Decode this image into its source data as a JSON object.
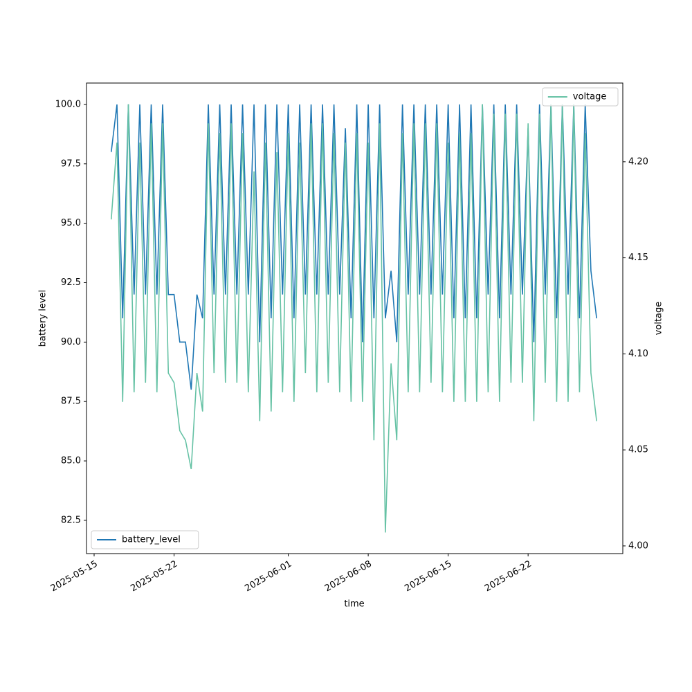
{
  "chart_data": {
    "type": "line",
    "xlabel": "time",
    "ylabel": "battery level",
    "y2label": "voltage",
    "x": [
      "2025-05-16T12:00",
      "2025-05-17T00:00",
      "2025-05-17T12:00",
      "2025-05-18T00:00",
      "2025-05-18T12:00",
      "2025-05-19T00:00",
      "2025-05-19T12:00",
      "2025-05-20T00:00",
      "2025-05-20T12:00",
      "2025-05-21T00:00",
      "2025-05-21T12:00",
      "2025-05-22T00:00",
      "2025-05-22T12:00",
      "2025-05-23T00:00",
      "2025-05-23T12:00",
      "2025-05-24T00:00",
      "2025-05-24T12:00",
      "2025-05-25T00:00",
      "2025-05-25T12:00",
      "2025-05-26T00:00",
      "2025-05-26T12:00",
      "2025-05-27T00:00",
      "2025-05-27T12:00",
      "2025-05-28T00:00",
      "2025-05-28T12:00",
      "2025-05-29T00:00",
      "2025-05-29T12:00",
      "2025-05-30T00:00",
      "2025-05-30T12:00",
      "2025-05-31T00:00",
      "2025-05-31T12:00",
      "2025-06-01T00:00",
      "2025-06-01T12:00",
      "2025-06-02T00:00",
      "2025-06-02T12:00",
      "2025-06-03T00:00",
      "2025-06-03T12:00",
      "2025-06-04T00:00",
      "2025-06-04T12:00",
      "2025-06-05T00:00",
      "2025-06-05T12:00",
      "2025-06-06T00:00",
      "2025-06-06T12:00",
      "2025-06-07T00:00",
      "2025-06-07T12:00",
      "2025-06-08T00:00",
      "2025-06-08T12:00",
      "2025-06-09T00:00",
      "2025-06-09T12:00",
      "2025-06-10T00:00",
      "2025-06-10T12:00",
      "2025-06-11T00:00",
      "2025-06-11T12:00",
      "2025-06-12T00:00",
      "2025-06-12T12:00",
      "2025-06-13T00:00",
      "2025-06-13T12:00",
      "2025-06-14T00:00",
      "2025-06-14T12:00",
      "2025-06-15T00:00",
      "2025-06-15T12:00",
      "2025-06-16T00:00",
      "2025-06-16T12:00",
      "2025-06-17T00:00",
      "2025-06-17T12:00",
      "2025-06-18T00:00",
      "2025-06-18T12:00",
      "2025-06-19T00:00",
      "2025-06-19T12:00",
      "2025-06-20T00:00",
      "2025-06-20T12:00",
      "2025-06-21T00:00",
      "2025-06-21T12:00",
      "2025-06-22T00:00",
      "2025-06-22T12:00",
      "2025-06-23T00:00",
      "2025-06-23T12:00",
      "2025-06-24T00:00",
      "2025-06-24T12:00",
      "2025-06-25T00:00",
      "2025-06-25T12:00",
      "2025-06-26T00:00",
      "2025-06-26T12:00",
      "2025-06-27T00:00",
      "2025-06-27T12:00",
      "2025-06-28T00:00"
    ],
    "series": [
      {
        "name": "battery_level",
        "color": "#1f77b4",
        "legend": "lower left",
        "values": [
          98,
          100,
          91,
          100,
          92,
          100,
          92,
          100,
          92,
          100,
          92,
          92,
          90,
          90,
          88,
          92,
          91,
          100,
          92,
          100,
          92,
          100,
          92,
          100,
          92,
          100,
          90,
          100,
          91,
          100,
          92,
          100,
          91,
          100,
          92,
          100,
          92,
          100,
          92,
          100,
          92,
          99,
          91,
          100,
          90,
          100,
          91,
          100,
          91,
          93,
          90,
          100,
          92,
          100,
          92,
          100,
          92,
          100,
          92,
          100,
          91,
          100,
          91,
          100,
          91,
          100,
          92,
          100,
          91,
          100,
          92,
          100,
          92,
          99,
          90,
          100,
          92,
          100,
          91,
          100,
          92,
          100,
          91,
          100,
          93,
          91
        ]
      },
      {
        "name": "voltage",
        "color": "#66c2a5",
        "axis": "y2",
        "legend": "upper right",
        "values": [
          4.17,
          4.21,
          4.075,
          4.23,
          4.08,
          4.21,
          4.085,
          4.22,
          4.08,
          4.22,
          4.09,
          4.085,
          4.06,
          4.055,
          4.04,
          4.09,
          4.07,
          4.22,
          4.09,
          4.215,
          4.085,
          4.22,
          4.085,
          4.215,
          4.08,
          4.195,
          4.065,
          4.21,
          4.07,
          4.205,
          4.08,
          4.215,
          4.075,
          4.21,
          4.09,
          4.22,
          4.08,
          4.22,
          4.085,
          4.215,
          4.08,
          4.21,
          4.075,
          4.215,
          4.075,
          4.21,
          4.055,
          4.22,
          4.007,
          4.095,
          4.055,
          4.215,
          4.08,
          4.22,
          4.08,
          4.22,
          4.085,
          4.22,
          4.08,
          4.21,
          4.075,
          4.215,
          4.075,
          4.215,
          4.075,
          4.23,
          4.08,
          4.225,
          4.075,
          4.225,
          4.085,
          4.225,
          4.085,
          4.22,
          4.065,
          4.225,
          4.085,
          4.23,
          4.075,
          4.23,
          4.075,
          4.23,
          4.08,
          4.215,
          4.09,
          4.065
        ]
      }
    ],
    "xlim": [
      "2025-05-14T08:00",
      "2025-06-30T07:00"
    ],
    "xticks": [
      "2025-05-15",
      "2025-05-22",
      "2025-06-01",
      "2025-06-08",
      "2025-06-15",
      "2025-06-22"
    ],
    "ylim": [
      81.1,
      100.9
    ],
    "yticks": [
      82.5,
      {
        "value": 85,
        "label": "85.0"
      },
      87.5,
      {
        "value": 90,
        "label": "90.0"
      },
      92.5,
      {
        "value": 95,
        "label": "95.0"
      },
      97.5,
      {
        "value": 100,
        "label": "100.0"
      }
    ],
    "y2lim": [
      3.996,
      4.241
    ],
    "y2ticks": [
      {
        "value": 4,
        "label": "4.00"
      },
      4.05,
      {
        "value": 4.1,
        "label": "4.10"
      },
      4.15,
      {
        "value": 4.2,
        "label": "4.20"
      }
    ]
  }
}
